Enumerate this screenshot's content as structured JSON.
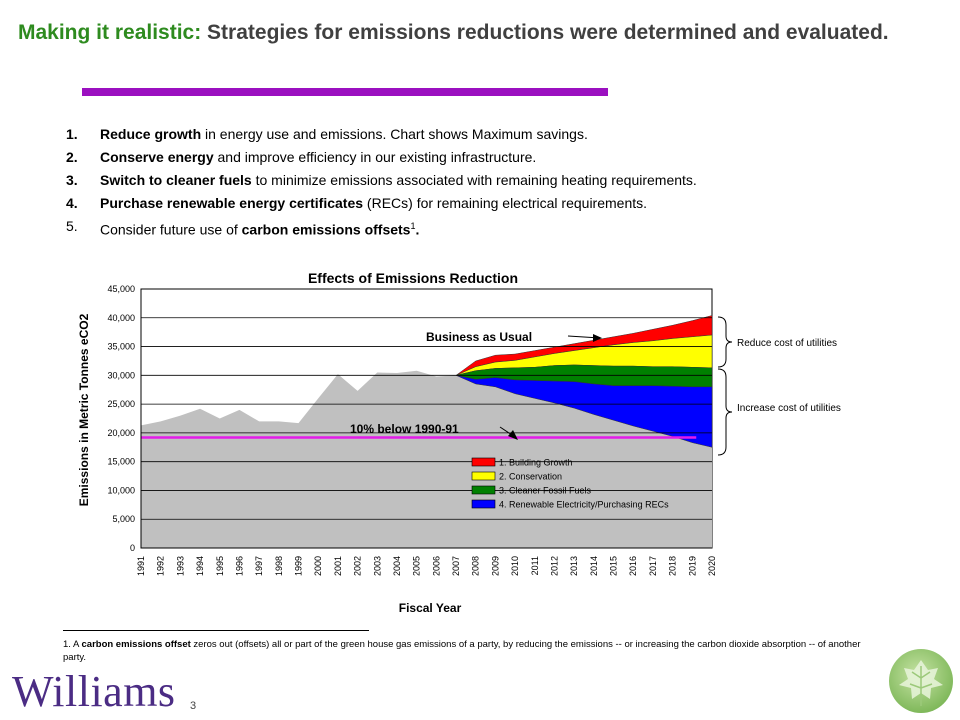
{
  "header": {
    "title_accent": "Making it realistic:",
    "title_rest": " Strategies for emissions reductions were determined and evaluated."
  },
  "strategies": [
    {
      "num": "1.",
      "bold": "Reduce growth",
      "text": " in energy use and emissions.  Chart shows Maximum savings."
    },
    {
      "num": "2.",
      "bold": "Conserve energy",
      "text": " and improve efficiency in our existing infrastructure."
    },
    {
      "num": "3.",
      "bold": "Switch to cleaner fuels",
      "text": " to minimize emissions associated with remaining heating requirements."
    },
    {
      "num": "4.",
      "bold": "Purchase renewable energy certificates",
      "text": " (RECs) for remaining electrical requirements."
    },
    {
      "num": "5.",
      "pre": "Consider future use of ",
      "bold": "carbon emissions offsets",
      "sup": "1",
      "post": "."
    }
  ],
  "footnote": {
    "prefix": "1. A ",
    "bold": "carbon emissions offset",
    "text": " zeros out (offsets) all or part of the green house gas emissions of a party, by reducing the emissions -- or increasing the carbon dioxide absorption -- of another party."
  },
  "logo_text": "Williams",
  "page_number": "3",
  "colors": {
    "title_accent": "#2e8b1f",
    "title_bar": "#9b10c0",
    "logo": "#4b2c84",
    "area_fill": "#c0c0c0",
    "target_line": "#e21ce8",
    "building_growth": "#ff0000",
    "conservation": "#ffff00",
    "cleaner_fuels": "#008000",
    "renewables": "#0000ff"
  },
  "chart_data": {
    "type": "area",
    "title": "Effects of Emissions Reduction",
    "xlabel": "Fiscal Year",
    "ylabel": "Emissions in Metric Tonnes eCO2",
    "ylim": [
      0,
      45000
    ],
    "yticks": [
      0,
      5000,
      10000,
      15000,
      20000,
      25000,
      30000,
      35000,
      40000,
      45000
    ],
    "ytick_labels": [
      "0",
      "5,000",
      "10,000",
      "15,000",
      "20,000",
      "25,000",
      "30,000",
      "35,000",
      "40,000",
      "45,000"
    ],
    "x": [
      "1991",
      "1992",
      "1993",
      "1994",
      "1995",
      "1996",
      "1997",
      "1998",
      "1999",
      "2000",
      "2001",
      "2002",
      "2003",
      "2004",
      "2005",
      "2006",
      "2007",
      "2008",
      "2009",
      "2010",
      "2011",
      "2012",
      "2013",
      "2014",
      "2015",
      "2016",
      "2017",
      "2018",
      "2019",
      "2020"
    ],
    "historical": {
      "x": [
        "1991",
        "1992",
        "1993",
        "1994",
        "1995",
        "1996",
        "1997",
        "1998",
        "1999",
        "2000",
        "2001",
        "2002",
        "2003",
        "2004",
        "2005",
        "2006",
        "2007"
      ],
      "values": [
        21300,
        22000,
        23000,
        24200,
        22500,
        24000,
        22000,
        22000,
        21700,
        26000,
        30200,
        27300,
        30500,
        30400,
        30800,
        29800,
        30000
      ]
    },
    "projection_x": [
      "2007",
      "2008",
      "2009",
      "2010",
      "2011",
      "2012",
      "2013",
      "2014",
      "2015",
      "2016",
      "2017",
      "2018",
      "2019",
      "2020"
    ],
    "series": [
      {
        "name": "1. Building Growth",
        "key": "building_growth",
        "upper": [
          30000,
          32500,
          33500,
          33700,
          34300,
          34900,
          35500,
          36100,
          36700,
          37300,
          38000,
          38700,
          39500,
          40400
        ],
        "lower": [
          30000,
          31500,
          32300,
          32600,
          33200,
          33800,
          34300,
          34800,
          35300,
          35700,
          36000,
          36400,
          36700,
          37000
        ]
      },
      {
        "name": "2. Conservation",
        "key": "conservation",
        "upper": [
          30000,
          31500,
          32300,
          32600,
          33200,
          33800,
          34300,
          34800,
          35300,
          35700,
          36000,
          36400,
          36700,
          37000
        ],
        "lower": [
          30000,
          30800,
          31200,
          31300,
          31400,
          31700,
          31800,
          31700,
          31600,
          31600,
          31500,
          31500,
          31400,
          31300
        ]
      },
      {
        "name": "3. Cleaner Fossil Fuels",
        "key": "cleaner_fuels",
        "upper": [
          30000,
          30800,
          31200,
          31300,
          31400,
          31700,
          31800,
          31700,
          31600,
          31600,
          31500,
          31500,
          31400,
          31300
        ],
        "lower": [
          30000,
          29300,
          29600,
          29200,
          29100,
          29000,
          28900,
          28500,
          28200,
          28200,
          28200,
          28100,
          28000,
          28000
        ]
      },
      {
        "name": "4. Renewable Electricity/Purchasing RECs",
        "key": "renewables",
        "upper": [
          30000,
          29300,
          29600,
          29200,
          29100,
          29000,
          28900,
          28500,
          28200,
          28200,
          28200,
          28100,
          28000,
          28000
        ],
        "lower": [
          30000,
          28500,
          28000,
          26800,
          26000,
          25200,
          24300,
          23200,
          22200,
          21200,
          20300,
          19400,
          18300,
          17500
        ]
      }
    ],
    "target_line": {
      "label": "10% below 1990-91",
      "value": 19200
    },
    "bau_label": "Business as Usual",
    "brackets": [
      {
        "label": "Reduce cost of utilities"
      },
      {
        "label": "Increase cost of utilities"
      }
    ],
    "grid": true,
    "legend_position": "lower-right"
  }
}
